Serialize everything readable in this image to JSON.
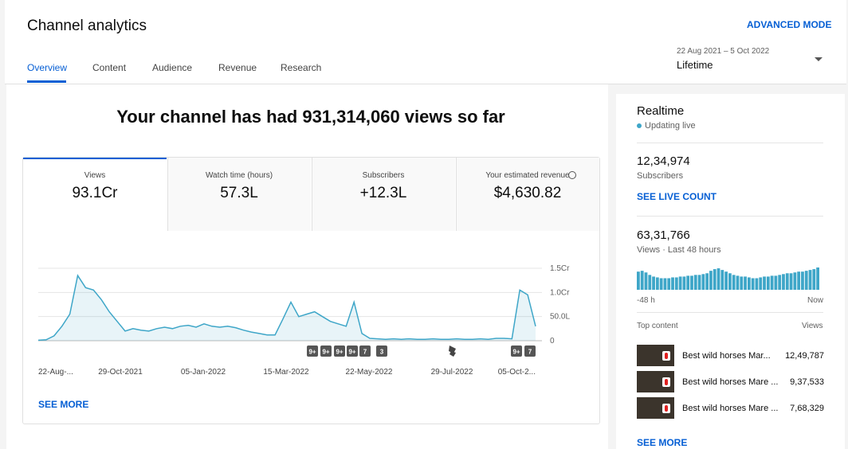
{
  "header": {
    "title": "Channel analytics",
    "advanced_mode": "ADVANCED MODE",
    "tabs": [
      "Overview",
      "Content",
      "Audience",
      "Revenue",
      "Research"
    ],
    "date_range": "22 Aug 2021 – 5 Oct 2022",
    "period": "Lifetime"
  },
  "headline": "Your channel has had 931,314,060 views so far",
  "metrics": [
    {
      "label": "Views",
      "value": "93.1Cr"
    },
    {
      "label": "Watch time (hours)",
      "value": "57.3L"
    },
    {
      "label": "Subscribers",
      "value": "+12.3L"
    },
    {
      "label": "Your estimated revenue",
      "value": "$4,630.82"
    }
  ],
  "chart": {
    "type": "line",
    "color": "#3ea6c8",
    "x_labels": [
      "22-Aug-...",
      "29-Oct-2021",
      "05-Jan-2022",
      "15-Mar-2022",
      "22-May-2022",
      "29-Jul-2022",
      "05-Oct-2..."
    ],
    "ylim": [
      0,
      15000000
    ],
    "yticks": [
      0,
      {
        "value": 5000000,
        "label": "50.0L"
      },
      {
        "value": 10000000,
        "label": "1.0Cr"
      },
      {
        "value": 15000000,
        "label": "1.5Cr"
      }
    ],
    "values": [
      100000,
      200000,
      1000000,
      3000000,
      5500000,
      13500000,
      11000000,
      10500000,
      8500000,
      6000000,
      4000000,
      2000000,
      2500000,
      2200000,
      2000000,
      2500000,
      2800000,
      2500000,
      3000000,
      3200000,
      2800000,
      3500000,
      3000000,
      2800000,
      3000000,
      2700000,
      2200000,
      1800000,
      1500000,
      1200000,
      1200000,
      4500000,
      8000000,
      5000000,
      5500000,
      6000000,
      5000000,
      4000000,
      3500000,
      3000000,
      8000000,
      1500000,
      500000,
      400000,
      300000,
      400000,
      300000,
      400000,
      300000,
      300000,
      400000,
      300000,
      300000,
      400000,
      300000,
      300000,
      400000,
      300000,
      500000,
      500000,
      400000,
      10500000,
      9500000,
      3000000
    ],
    "markers": [
      "9+",
      "9+",
      "9+",
      "9+",
      "7",
      "3",
      "9+",
      "7"
    ],
    "see_more": "SEE MORE"
  },
  "realtime": {
    "title": "Realtime",
    "status": "Updating live",
    "subscribers": "12,34,974",
    "subscribers_label": "Subscribers",
    "live_count": "SEE LIVE COUNT",
    "views": "63,31,766",
    "views_label": "Views · Last 48 hours",
    "bars": [
      132000,
      138000,
      126000,
      108000,
      96000,
      90000,
      84000,
      84000,
      84000,
      90000,
      90000,
      96000,
      96000,
      102000,
      102000,
      108000,
      108000,
      114000,
      120000,
      138000,
      150000,
      156000,
      144000,
      132000,
      120000,
      108000,
      102000,
      96000,
      96000,
      90000,
      84000,
      84000,
      90000,
      96000,
      96000,
      102000,
      102000,
      108000,
      114000,
      120000,
      120000,
      126000,
      132000,
      132000,
      138000,
      144000,
      150000,
      162000
    ],
    "start_label": "-48 h",
    "end_label": "Now",
    "top_content": "Top content",
    "views_header": "Views",
    "items": [
      {
        "title": "Best wild horses Mar...",
        "views": "12,49,787"
      },
      {
        "title": "Best wild horses Mare ...",
        "views": "9,37,533"
      },
      {
        "title": "Best wild horses Mare ...",
        "views": "7,68,329"
      }
    ],
    "see_more": "SEE MORE"
  }
}
